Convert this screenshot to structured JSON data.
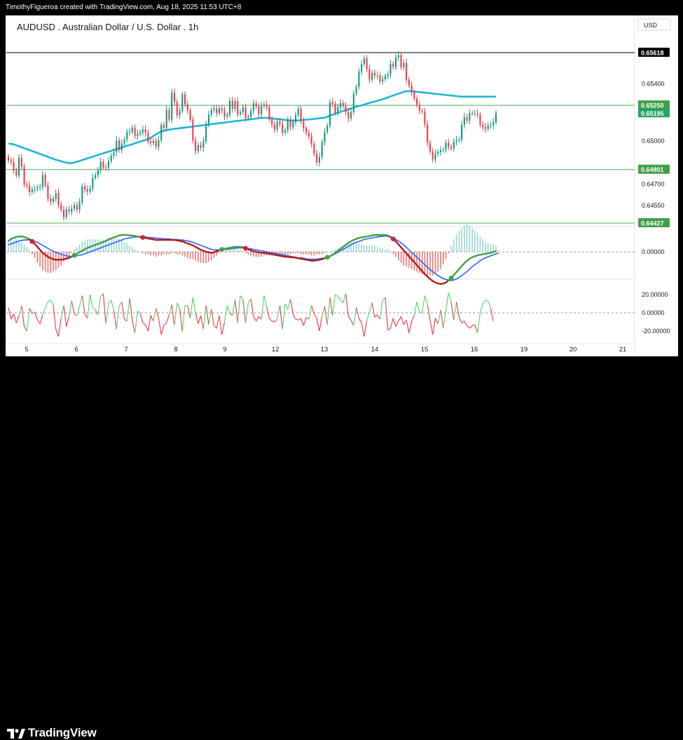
{
  "header": {
    "credit": "TimothyFigueroa created with TradingView.com, Aug 18, 2025 11:53 UTC+8"
  },
  "footer": {
    "brand": "TradingView"
  },
  "chart_data": {
    "type": "line",
    "title": "AUDUSD . Australian Dollar / U.S. Dollar . 1h",
    "currency": "USD",
    "x_ticks": [
      "5",
      "6",
      "7",
      "8",
      "9",
      "12",
      "13",
      "14",
      "15",
      "16",
      "19",
      "20",
      "21"
    ],
    "price_axis": {
      "ticks": [
        "0.65400",
        "0.65000",
        "0.64700",
        "0.64550"
      ],
      "ylim": [
        0.6438,
        0.6575
      ]
    },
    "horizontal_levels": [
      {
        "value": 0.65618,
        "label": "0.65618",
        "color": "#000000"
      },
      {
        "value": 0.6525,
        "label": "0.65250",
        "color": "#4caf50"
      },
      {
        "value": 0.64801,
        "label": "0.64801",
        "color": "#4caf50"
      },
      {
        "value": 0.64427,
        "label": "0.64427",
        "color": "#4caf50"
      }
    ],
    "last_price": {
      "value": 0.65195,
      "label": "0.65195",
      "color": "#089981"
    },
    "colors": {
      "up": "#089981",
      "down": "#f23645",
      "ma": "#1eb6d6"
    },
    "candle_series": {
      "name": "AUDUSD",
      "close": [
        0.64862,
        0.64853,
        0.64796,
        0.6476,
        0.64882,
        0.64821,
        0.64695,
        0.64688,
        0.64643,
        0.64661,
        0.64664,
        0.64674,
        0.6468,
        0.64763,
        0.6469,
        0.64598,
        0.64576,
        0.64597,
        0.64637,
        0.64556,
        0.6452,
        0.64468,
        0.64524,
        0.64506,
        0.64526,
        0.64553,
        0.6452,
        0.64573,
        0.64683,
        0.6466,
        0.64647,
        0.6467,
        0.64743,
        0.64763,
        0.64796,
        0.64856,
        0.64815,
        0.64814,
        0.6486,
        0.64898,
        0.64922,
        0.65004,
        0.64937,
        0.64984,
        0.65012,
        0.65063,
        0.65064,
        0.65093,
        0.65036,
        0.65052,
        0.65061,
        0.65082,
        0.65059,
        0.64997,
        0.64986,
        0.65002,
        0.6496,
        0.65007,
        0.65112,
        0.65091,
        0.65217,
        0.65149,
        0.65339,
        0.65273,
        0.65179,
        0.65211,
        0.65326,
        0.65257,
        0.65214,
        0.6515,
        0.65003,
        0.64931,
        0.64971,
        0.64953,
        0.64998,
        0.65119,
        0.65184,
        0.65218,
        0.65227,
        0.65194,
        0.65229,
        0.65212,
        0.65172,
        0.65184,
        0.6528,
        0.65225,
        0.65279,
        0.65188,
        0.65202,
        0.65235,
        0.65161,
        0.65168,
        0.65211,
        0.65263,
        0.65241,
        0.65188,
        0.65245,
        0.65255,
        0.65237,
        0.65151,
        0.65113,
        0.6508,
        0.65136,
        0.65118,
        0.65059,
        0.65076,
        0.65146,
        0.65099,
        0.65133,
        0.65181,
        0.65226,
        0.65138,
        0.6509,
        0.65056,
        0.65032,
        0.64981,
        0.64911,
        0.6485,
        0.64889,
        0.64991,
        0.65063,
        0.65108,
        0.65271,
        0.6526,
        0.65197,
        0.65238,
        0.65265,
        0.65244,
        0.65202,
        0.65159,
        0.65203,
        0.6533,
        0.6538,
        0.65485,
        0.65538,
        0.65579,
        0.65502,
        0.65429,
        0.65476,
        0.65457,
        0.65458,
        0.65417,
        0.65432,
        0.65454,
        0.65466,
        0.65539,
        0.65518,
        0.65584,
        0.65601,
        0.65516,
        0.65546,
        0.6543,
        0.6539,
        0.65341,
        0.65297,
        0.65252,
        0.65211,
        0.65207,
        0.65116,
        0.64987,
        0.64927,
        0.64872,
        0.64912,
        0.64923,
        0.64937,
        0.6494,
        0.64988,
        0.6496,
        0.64947,
        0.64996,
        0.65008,
        0.6501,
        0.65114,
        0.65166,
        0.65143,
        0.65196,
        0.65193,
        0.65194,
        0.65184,
        0.65114,
        0.65099,
        0.65085,
        0.6511,
        0.6511,
        0.65132,
        0.65195
      ]
    },
    "ma_series": {
      "name": "",
      "values": [
        0.64983,
        0.6498,
        0.64977,
        0.6497,
        0.64964,
        0.64957,
        0.6495,
        0.64944,
        0.64937,
        0.6493,
        0.64924,
        0.64917,
        0.6491,
        0.64903,
        0.64897,
        0.6489,
        0.64883,
        0.64876,
        0.64869,
        0.64864,
        0.64859,
        0.64854,
        0.64849,
        0.64846,
        0.64846,
        0.6485,
        0.64856,
        0.64861,
        0.64867,
        0.64873,
        0.64879,
        0.64885,
        0.64891,
        0.64897,
        0.64903,
        0.64909,
        0.64914,
        0.6492,
        0.64926,
        0.64932,
        0.64938,
        0.64943,
        0.64949,
        0.64955,
        0.64961,
        0.64967,
        0.64972,
        0.64978,
        0.64984,
        0.6499,
        0.64996,
        0.65002,
        0.65008,
        0.65014,
        0.65022,
        0.65035,
        0.65047,
        0.65057,
        0.65066,
        0.65072,
        0.65077,
        0.6508,
        0.65083,
        0.65085,
        0.65087,
        0.6509,
        0.65092,
        0.65094,
        0.65097,
        0.65099,
        0.65101,
        0.65104,
        0.65106,
        0.65108,
        0.65111,
        0.65113,
        0.65115,
        0.65118,
        0.6512,
        0.65122,
        0.65125,
        0.65127,
        0.65129,
        0.65132,
        0.65134,
        0.65136,
        0.65139,
        0.65141,
        0.65143,
        0.65145,
        0.65148,
        0.6515,
        0.65152,
        0.65155,
        0.65157,
        0.65159,
        0.65161,
        0.65162,
        0.65162,
        0.6516,
        0.65158,
        0.65156,
        0.65154,
        0.65152,
        0.6515,
        0.65148,
        0.65146,
        0.65144,
        0.65142,
        0.65142,
        0.65144,
        0.65146,
        0.65148,
        0.6515,
        0.65151,
        0.65153,
        0.65155,
        0.65157,
        0.65159,
        0.65161,
        0.65163,
        0.6517,
        0.65177,
        0.65184,
        0.65191,
        0.65197,
        0.65204,
        0.6521,
        0.65216,
        0.65222,
        0.65228,
        0.65234,
        0.6524,
        0.65245,
        0.6525,
        0.65255,
        0.65261,
        0.65266,
        0.65271,
        0.65276,
        0.65282,
        0.65287,
        0.65292,
        0.65299,
        0.65305,
        0.65312,
        0.65318,
        0.65325,
        0.65331,
        0.65337,
        0.65344,
        0.65348,
        0.65349,
        0.65348,
        0.65346,
        0.65344,
        0.65342,
        0.6534,
        0.65338,
        0.65336,
        0.65334,
        0.65332,
        0.6533,
        0.65328,
        0.65326,
        0.65324,
        0.65322,
        0.6532,
        0.65318,
        0.65316,
        0.65314,
        0.65312,
        0.6531,
        0.6531,
        0.6531,
        0.6531,
        0.6531,
        0.6531,
        0.6531,
        0.6531,
        0.6531,
        0.6531,
        0.6531,
        0.6531,
        0.6531,
        0.6531
      ]
    },
    "macd_panel": {
      "zero_label": "0.00000",
      "fast_line": [
        0.00022,
        0.00026,
        0.00028,
        0.0003,
        0.00031,
        0.00031,
        0.0003,
        0.00028,
        0.00025,
        0.00021,
        0.00016,
        0.0001,
        4e-05,
        -2e-05,
        -6e-05,
        -0.0001,
        -0.00013,
        -0.00015,
        -0.00016,
        -0.00016,
        -0.00016,
        -0.00015,
        -0.00014,
        -0.00012,
        -0.0001,
        -7e-05,
        -4e-05,
        -1e-05,
        2e-05,
        5e-05,
        8e-05,
        0.0001,
        0.00012,
        0.00014,
        0.00016,
        0.00018,
        0.0002,
        0.00022,
        0.00025,
        0.00027,
        0.00029,
        0.00031,
        0.00033,
        0.00034,
        0.00034,
        0.00034,
        0.00033,
        0.00033,
        0.00032,
        0.00031,
        0.0003,
        0.00029,
        0.00028,
        0.00027,
        0.00026,
        0.00025,
        0.00024,
        0.00024,
        0.00024,
        0.00024,
        0.00024,
        0.00024,
        0.00024,
        0.00024,
        0.00023,
        0.00022,
        0.00021,
        0.00019,
        0.00017,
        0.00015,
        0.00013,
        0.0001,
        7e-05,
        4e-05,
        2e-05,
        0.0,
        -1e-05,
        -2e-05,
        -1e-05,
        1e-05,
        3e-05,
        5e-05,
        6e-05,
        7e-05,
        8e-05,
        9e-05,
        0.0001,
        0.0001,
        0.0001,
        9e-05,
        7e-05,
        5e-05,
        3e-05,
        1e-05,
        0.0,
        -1e-05,
        -2e-05,
        -2e-05,
        -3e-05,
        -4e-05,
        -5e-05,
        -6e-05,
        -7e-05,
        -8e-05,
        -9e-05,
        -0.0001,
        -0.0001,
        -0.00011,
        -0.00011,
        -0.00012,
        -0.00013,
        -0.00014,
        -0.00015,
        -0.00016,
        -0.00017,
        -0.00018,
        -0.00018,
        -0.00017,
        -0.00016,
        -0.00015,
        -0.00013,
        -0.00011,
        -9e-05,
        -6e-05,
        -2e-05,
        2e-05,
        6e-05,
        0.0001,
        0.00014,
        0.00018,
        0.00021,
        0.00024,
        0.00026,
        0.00028,
        0.00029,
        0.0003,
        0.00031,
        0.00032,
        0.00033,
        0.00034,
        0.00034,
        0.00034,
        0.00034,
        0.00034,
        0.00033,
        0.0003,
        0.00026,
        0.00021,
        0.00015,
        9e-05,
        3e-05,
        -3e-05,
        -9e-05,
        -0.00015,
        -0.00021,
        -0.00027,
        -0.00033,
        -0.00039,
        -0.00045,
        -0.0005,
        -0.00055,
        -0.00059,
        -0.00062,
        -0.00064,
        -0.00065,
        -0.00064,
        -0.00062,
        -0.00058,
        -0.00053,
        -0.00047,
        -0.00041,
        -0.00035,
        -0.00029,
        -0.00023,
        -0.00018,
        -0.00014,
        -0.00011,
        -9e-05,
        -7e-05,
        -6e-05,
        -5e-05,
        -4e-05,
        -3e-05,
        -2e-05,
        0.0,
        1e-05
      ],
      "slow_line": [
        0.00014,
        0.00016,
        0.00018,
        0.0002,
        0.00022,
        0.00023,
        0.00024,
        0.00024,
        0.00024,
        0.00023,
        0.00021,
        0.00019,
        0.00016,
        0.00013,
        0.0001,
        7e-05,
        4e-05,
        1e-05,
        -1e-05,
        -3e-05,
        -5e-05,
        -7e-05,
        -8e-05,
        -9e-05,
        -9e-05,
        -9e-05,
        -8e-05,
        -7e-05,
        -6e-05,
        -4e-05,
        -2e-05,
        0.0,
        2e-05,
        4e-05,
        6e-05,
        8e-05,
        0.0001,
        0.00012,
        0.00014,
        0.00016,
        0.00018,
        0.0002,
        0.00022,
        0.00024,
        0.00026,
        0.00027,
        0.00028,
        0.00029,
        0.0003,
        0.0003,
        0.0003,
        0.0003,
        0.0003,
        0.00029,
        0.00029,
        0.00028,
        0.00028,
        0.00027,
        0.00027,
        0.00026,
        0.00026,
        0.00026,
        0.00025,
        0.00025,
        0.00025,
        0.00024,
        0.00024,
        0.00023,
        0.00022,
        0.00021,
        0.00019,
        0.00017,
        0.00015,
        0.00013,
        0.00011,
        9e-05,
        7e-05,
        5e-05,
        4e-05,
        4e-05,
        4e-05,
        4e-05,
        5e-05,
        5e-05,
        6e-05,
        7e-05,
        7e-05,
        8e-05,
        8e-05,
        8e-05,
        8e-05,
        7e-05,
        6e-05,
        5e-05,
        4e-05,
        3e-05,
        2e-05,
        1e-05,
        0.0,
        -1e-05,
        -2e-05,
        -3e-05,
        -4e-05,
        -5e-05,
        -6e-05,
        -7e-05,
        -8e-05,
        -9e-05,
        -0.0001,
        -0.00011,
        -0.00012,
        -0.00012,
        -0.00013,
        -0.00014,
        -0.00015,
        -0.00015,
        -0.00015,
        -0.00015,
        -0.00014,
        -0.00013,
        -0.00012,
        -0.00011,
        -9e-05,
        -7e-05,
        -4e-05,
        -1e-05,
        2e-05,
        5e-05,
        8e-05,
        0.00011,
        0.00014,
        0.00017,
        0.00019,
        0.00021,
        0.00023,
        0.00025,
        0.00026,
        0.00027,
        0.00028,
        0.00029,
        0.0003,
        0.00031,
        0.00031,
        0.00032,
        0.00031,
        0.0003,
        0.00028,
        0.00025,
        0.00022,
        0.00018,
        0.00014,
        9e-05,
        4e-05,
        -1e-05,
        -6e-05,
        -0.00011,
        -0.00016,
        -0.00021,
        -0.00026,
        -0.00031,
        -0.00036,
        -0.0004,
        -0.00044,
        -0.00048,
        -0.00051,
        -0.00054,
        -0.00056,
        -0.00057,
        -0.00058,
        -0.00057,
        -0.00055,
        -0.00052,
        -0.00048,
        -0.00044,
        -0.0004,
        -0.00035,
        -0.0003,
        -0.00026,
        -0.00022,
        -0.00018,
        -0.00015,
        -0.00012,
        -0.0001,
        -8e-05,
        -6e-05,
        -4e-05,
        -3e-05
      ]
    },
    "oscillator_panel": {
      "ticks": [
        "20.00000",
        "0.00000",
        "-20.00000"
      ],
      "ylim": [
        -28,
        30
      ],
      "colors": {
        "positive": "#4cd964",
        "negative": "#f23645"
      },
      "values": [
        6,
        -7,
        -1,
        -11,
        -3,
        8,
        -15,
        -20,
        5,
        -1,
        1,
        -8,
        -12,
        -2,
        5,
        12,
        14,
        9,
        -18,
        -26,
        -6,
        8,
        -15,
        -4,
        13,
        -1,
        -3,
        7,
        19,
        -1,
        -6,
        20,
        6,
        3,
        -2,
        18,
        21,
        -12,
        10,
        14,
        3,
        -18,
        7,
        12,
        -7,
        -9,
        16,
        -8,
        -22,
        2,
        0,
        -11,
        -13,
        -20,
        -3,
        -9,
        5,
        -6,
        -24,
        -13,
        -11,
        -2,
        9,
        -14,
        11,
        5,
        -21,
        8,
        8,
        -6,
        17,
        0,
        -12,
        -3,
        -18,
        8,
        -13,
        4,
        -14,
        -17,
        -3,
        -24,
        -10,
        8,
        0,
        -3,
        14,
        -11,
        19,
        14,
        -11,
        11,
        15,
        -4,
        -9,
        -4,
        -7,
        19,
        7,
        -6,
        -9,
        -10,
        -7,
        8,
        -18,
        10,
        4,
        15,
        -2,
        -7,
        -8,
        -6,
        -14,
        -5,
        -7,
        8,
        -1,
        -6,
        -20,
        -4,
        7,
        -13,
        17,
        -3,
        20,
        18,
        14,
        11,
        21,
        -4,
        -8,
        -14,
        6,
        -6,
        -11,
        -26,
        -9,
        1,
        11,
        -5,
        -2,
        -7,
        14,
        17,
        -19,
        -17,
        -6,
        -15,
        -9,
        -4,
        -13,
        -8,
        -22,
        -9,
        -3,
        12,
        0,
        1,
        19,
        9,
        -8,
        -24,
        -6,
        -12,
        3,
        -17,
        3,
        22,
        12,
        -8,
        12,
        -5,
        -11,
        -9,
        -14,
        -17,
        -14,
        -13,
        -22,
        0,
        10,
        14,
        13,
        5,
        -9
      ]
    }
  }
}
